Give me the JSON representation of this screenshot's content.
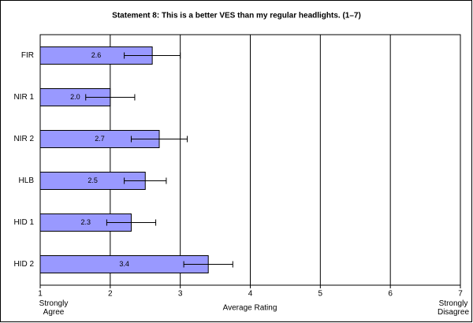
{
  "chart_data": {
    "type": "barh",
    "title": "Statement 8: This is a better VES than my regular headlights. (1–7)",
    "categories": [
      "FIR",
      "NIR 1",
      "NIR 2",
      "HLB",
      "HID 1",
      "HID 2"
    ],
    "values": [
      2.6,
      2.0,
      2.7,
      2.5,
      2.3,
      3.4
    ],
    "value_labels": [
      "2.6",
      "2.0",
      "2.7",
      "2.5",
      "2.3",
      "3.4"
    ],
    "errors": [
      0.4,
      0.35,
      0.4,
      0.3,
      0.35,
      0.35
    ],
    "color": "#9999ff",
    "xlim": [
      1,
      7
    ],
    "xticks": [
      1,
      2,
      3,
      4,
      5,
      6,
      7
    ],
    "grid": true,
    "xlabel": "Average Rating",
    "annotations": [
      "Strongly Agree",
      "Strongly Disagree"
    ]
  }
}
